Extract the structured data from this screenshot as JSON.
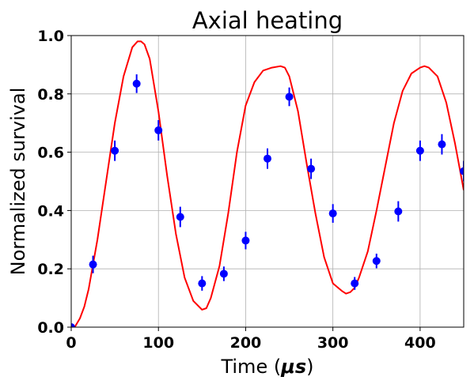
{
  "chart_data": {
    "type": "scatter",
    "title": "Axial heating",
    "xlabel_prefix": "Time (",
    "xlabel_unit": "μs",
    "xlabel_suffix": ")",
    "ylabel": "Normalized survival",
    "xlim": [
      0,
      450
    ],
    "ylim": [
      0,
      1.0
    ],
    "xticks": [
      0,
      100,
      200,
      300,
      400
    ],
    "xtick_labels": [
      "0",
      "100",
      "200",
      "300",
      "400"
    ],
    "yticks": [
      0,
      0.2,
      0.4,
      0.6,
      0.8,
      1.0
    ],
    "ytick_labels": [
      "0.0",
      "0.2",
      "0.4",
      "0.6",
      "0.8",
      "1.0"
    ],
    "grid": true,
    "series": [
      {
        "kind": "errorbar",
        "color": "#0000ff",
        "x": [
          0,
          25,
          50,
          75,
          100,
          125,
          150,
          175,
          200,
          225,
          250,
          275,
          300,
          325,
          350,
          375,
          400,
          425,
          450
        ],
        "y": [
          0.0,
          0.215,
          0.605,
          0.835,
          0.675,
          0.378,
          0.15,
          0.183,
          0.297,
          0.578,
          0.79,
          0.543,
          0.39,
          0.15,
          0.227,
          0.397,
          0.605,
          0.627,
          0.535
        ],
        "yerr": [
          0.012,
          0.03,
          0.035,
          0.032,
          0.035,
          0.035,
          0.025,
          0.025,
          0.03,
          0.035,
          0.032,
          0.035,
          0.032,
          0.022,
          0.025,
          0.035,
          0.035,
          0.035,
          0.035
        ]
      },
      {
        "kind": "line",
        "color": "#ff0000",
        "x": [
          0,
          4,
          10,
          15,
          20,
          30,
          40,
          50,
          60,
          70,
          76,
          80,
          84,
          90,
          100,
          110,
          120,
          130,
          140,
          150,
          155,
          160,
          170,
          180,
          190,
          200,
          210,
          220,
          230,
          240,
          245,
          250,
          260,
          270,
          280,
          290,
          300,
          310,
          315,
          320,
          325,
          330,
          340,
          350,
          360,
          370,
          380,
          390,
          400,
          405,
          410,
          420,
          430,
          440,
          450
        ],
        "y": [
          0.0,
          0.0,
          0.03,
          0.07,
          0.13,
          0.3,
          0.5,
          0.7,
          0.86,
          0.96,
          0.98,
          0.98,
          0.97,
          0.92,
          0.74,
          0.52,
          0.32,
          0.17,
          0.09,
          0.06,
          0.065,
          0.1,
          0.21,
          0.39,
          0.6,
          0.76,
          0.84,
          0.88,
          0.89,
          0.895,
          0.89,
          0.86,
          0.74,
          0.56,
          0.39,
          0.24,
          0.15,
          0.125,
          0.115,
          0.12,
          0.135,
          0.17,
          0.26,
          0.4,
          0.55,
          0.7,
          0.81,
          0.87,
          0.89,
          0.895,
          0.89,
          0.86,
          0.77,
          0.63,
          0.47
        ]
      }
    ]
  }
}
